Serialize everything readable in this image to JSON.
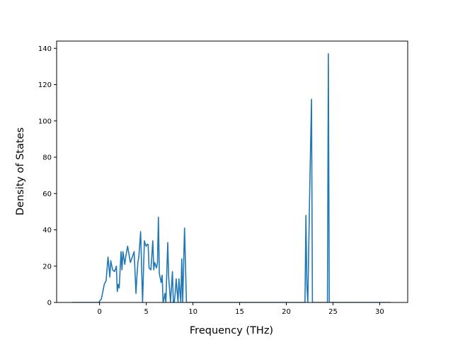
{
  "chart_data": {
    "type": "line",
    "title": "",
    "xlabel": "Frequency (THz)",
    "ylabel": "Density of States",
    "xlim": [
      -4.6,
      33.0
    ],
    "ylim": [
      0,
      144
    ],
    "xticks": [
      0,
      5,
      10,
      15,
      20,
      25,
      30
    ],
    "yticks": [
      0,
      20,
      40,
      60,
      80,
      100,
      120,
      140
    ],
    "grid": false,
    "legend": "none",
    "line_color": "#1f77b4",
    "series": [
      {
        "x": [
          -2.9,
          -0.1,
          0.2,
          0.5,
          0.7,
          0.9,
          1.1,
          1.2,
          1.4,
          1.6,
          1.8,
          1.9,
          2.0,
          2.1,
          2.3,
          2.4,
          2.5,
          2.7,
          2.8,
          3.0,
          3.1,
          3.3,
          3.5,
          3.7,
          3.9,
          4.0,
          4.1,
          4.2,
          4.4,
          4.6,
          4.8,
          4.9,
          5.0,
          5.1,
          5.2,
          5.3,
          5.5,
          5.7,
          5.8,
          5.9,
          6.1,
          6.2,
          6.3,
          6.4,
          6.6,
          6.7,
          6.8,
          6.9,
          7.0,
          7.1,
          7.3,
          7.4,
          7.6,
          7.8,
          7.9,
          8.0,
          8.1,
          8.2,
          8.4,
          8.5,
          8.7,
          8.8,
          8.9,
          9.1,
          9.3,
          9.5,
          9.7,
          9.8,
          10.0,
          10.2,
          10.4,
          10.5,
          10.6,
          10.7,
          10.9,
          11.1,
          11.2,
          11.3,
          11.4,
          11.5,
          22.0,
          22.1,
          22.2,
          22.3,
          22.5,
          22.7,
          22.8,
          23.0,
          23.1,
          23.3,
          24.4,
          24.5,
          24.6,
          24.7,
          24.8,
          24.9,
          31.2
        ],
        "y": [
          0,
          0,
          2,
          10,
          12,
          25,
          14,
          23,
          18,
          17,
          20,
          6,
          10,
          8,
          28,
          18,
          28,
          21,
          25,
          31,
          28,
          22,
          25,
          28,
          5,
          14,
          22,
          25,
          39,
          0,
          34,
          32,
          31,
          32,
          32,
          19,
          18,
          34,
          18,
          22,
          19,
          22,
          47,
          16,
          11,
          15,
          0,
          2,
          5,
          0,
          33,
          14,
          0,
          17,
          0,
          0,
          5,
          13,
          0,
          13,
          0,
          24,
          0,
          41,
          0,
          0,
          0,
          0,
          0,
          0,
          0,
          0,
          0,
          0,
          0,
          0,
          0,
          0,
          0,
          0,
          0,
          48,
          10,
          0,
          60,
          112,
          0,
          0,
          0,
          0,
          0,
          137,
          0,
          0,
          0,
          0,
          0
        ]
      }
    ]
  }
}
